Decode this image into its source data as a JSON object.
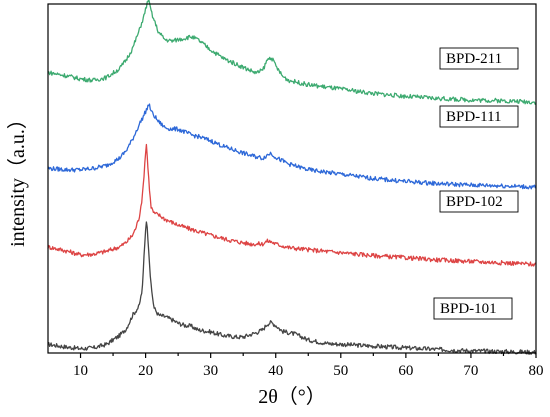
{
  "chart_data": {
    "type": "line",
    "title": "",
    "xlabel": "2θ（°）",
    "ylabel": "intensity（a.u.）",
    "xlim": [
      5,
      80
    ],
    "ylim": [
      0,
      4.8
    ],
    "x_ticks": [
      10,
      20,
      30,
      40,
      50,
      60,
      70,
      80
    ],
    "y_ticks_shown": false,
    "grid": false,
    "legend": "inline-labels-right",
    "series": [
      {
        "name": "BPD-101",
        "color": "#444444",
        "offset": 0.0,
        "x": [
          5,
          8,
          10,
          12,
          14,
          15,
          16,
          17,
          17.5,
          18,
          18.5,
          19,
          19.5,
          19.8,
          20.1,
          20.4,
          20.8,
          21.3,
          22,
          23,
          24,
          25,
          26,
          27,
          28,
          30,
          32,
          34,
          35,
          36,
          37,
          38,
          38.7,
          39.3,
          40,
          41,
          42,
          43,
          45,
          48,
          52,
          56,
          60,
          65,
          70,
          75,
          80
        ],
        "y": [
          0.12,
          0.08,
          0.06,
          0.07,
          0.12,
          0.18,
          0.24,
          0.33,
          0.42,
          0.52,
          0.58,
          0.64,
          0.88,
          1.4,
          1.85,
          1.55,
          0.95,
          0.62,
          0.52,
          0.5,
          0.46,
          0.41,
          0.38,
          0.37,
          0.32,
          0.29,
          0.24,
          0.22,
          0.22,
          0.25,
          0.28,
          0.32,
          0.4,
          0.42,
          0.38,
          0.3,
          0.28,
          0.26,
          0.18,
          0.13,
          0.11,
          0.09,
          0.07,
          0.05,
          0.03,
          0.02,
          0.01
        ]
      },
      {
        "name": "BPD-102",
        "color": "#dd4444",
        "offset": 1.2,
        "x": [
          5,
          8,
          10,
          12,
          14,
          16,
          17,
          18,
          18.5,
          19,
          19.5,
          19.8,
          20.1,
          20.4,
          20.8,
          21.3,
          22,
          23,
          24,
          25,
          27,
          30,
          33,
          36,
          38,
          38.7,
          39.3,
          40,
          42,
          45,
          50,
          55,
          60,
          65,
          70,
          75,
          80
        ],
        "y": [
          0.26,
          0.2,
          0.15,
          0.16,
          0.2,
          0.26,
          0.32,
          0.42,
          0.52,
          0.66,
          0.95,
          1.3,
          1.7,
          1.3,
          0.82,
          0.72,
          0.7,
          0.64,
          0.6,
          0.56,
          0.5,
          0.42,
          0.35,
          0.3,
          0.3,
          0.34,
          0.33,
          0.3,
          0.25,
          0.22,
          0.18,
          0.14,
          0.11,
          0.08,
          0.06,
          0.04,
          0.02
        ]
      },
      {
        "name": "BPD-111",
        "color": "#2d68d8",
        "offset": 2.28,
        "x": [
          5,
          8,
          10,
          12,
          14,
          16,
          17,
          18,
          19,
          19.8,
          20.5,
          21,
          22,
          23,
          24,
          25,
          26,
          27,
          28,
          30,
          32,
          34,
          36,
          38,
          39.2,
          40.2,
          42,
          45,
          50,
          55,
          60,
          65,
          70,
          75,
          80
        ],
        "y": [
          0.26,
          0.24,
          0.24,
          0.26,
          0.3,
          0.4,
          0.5,
          0.66,
          0.86,
          1.0,
          1.14,
          1.02,
          0.9,
          0.82,
          0.8,
          0.8,
          0.76,
          0.72,
          0.7,
          0.64,
          0.56,
          0.5,
          0.44,
          0.4,
          0.47,
          0.4,
          0.32,
          0.24,
          0.18,
          0.12,
          0.08,
          0.05,
          0.03,
          0.02,
          0.0
        ]
      },
      {
        "name": "BPD-211",
        "color": "#3daa70",
        "offset": 3.45,
        "x": [
          5,
          8,
          10,
          12,
          14,
          16,
          17,
          18,
          19,
          19.8,
          20.4,
          21,
          22,
          23,
          24,
          25,
          26,
          27,
          28,
          30,
          32,
          34,
          36,
          37,
          38,
          38.7,
          39.3,
          40,
          41,
          42,
          45,
          50,
          55,
          60,
          65,
          70,
          75,
          80
        ],
        "y": [
          0.41,
          0.36,
          0.32,
          0.3,
          0.34,
          0.46,
          0.58,
          0.74,
          0.98,
          1.2,
          1.42,
          1.2,
          0.96,
          0.86,
          0.84,
          0.86,
          0.88,
          0.9,
          0.86,
          0.72,
          0.6,
          0.52,
          0.44,
          0.4,
          0.44,
          0.58,
          0.62,
          0.5,
          0.36,
          0.3,
          0.24,
          0.18,
          0.12,
          0.08,
          0.05,
          0.03,
          0.02,
          0.0
        ]
      }
    ]
  }
}
